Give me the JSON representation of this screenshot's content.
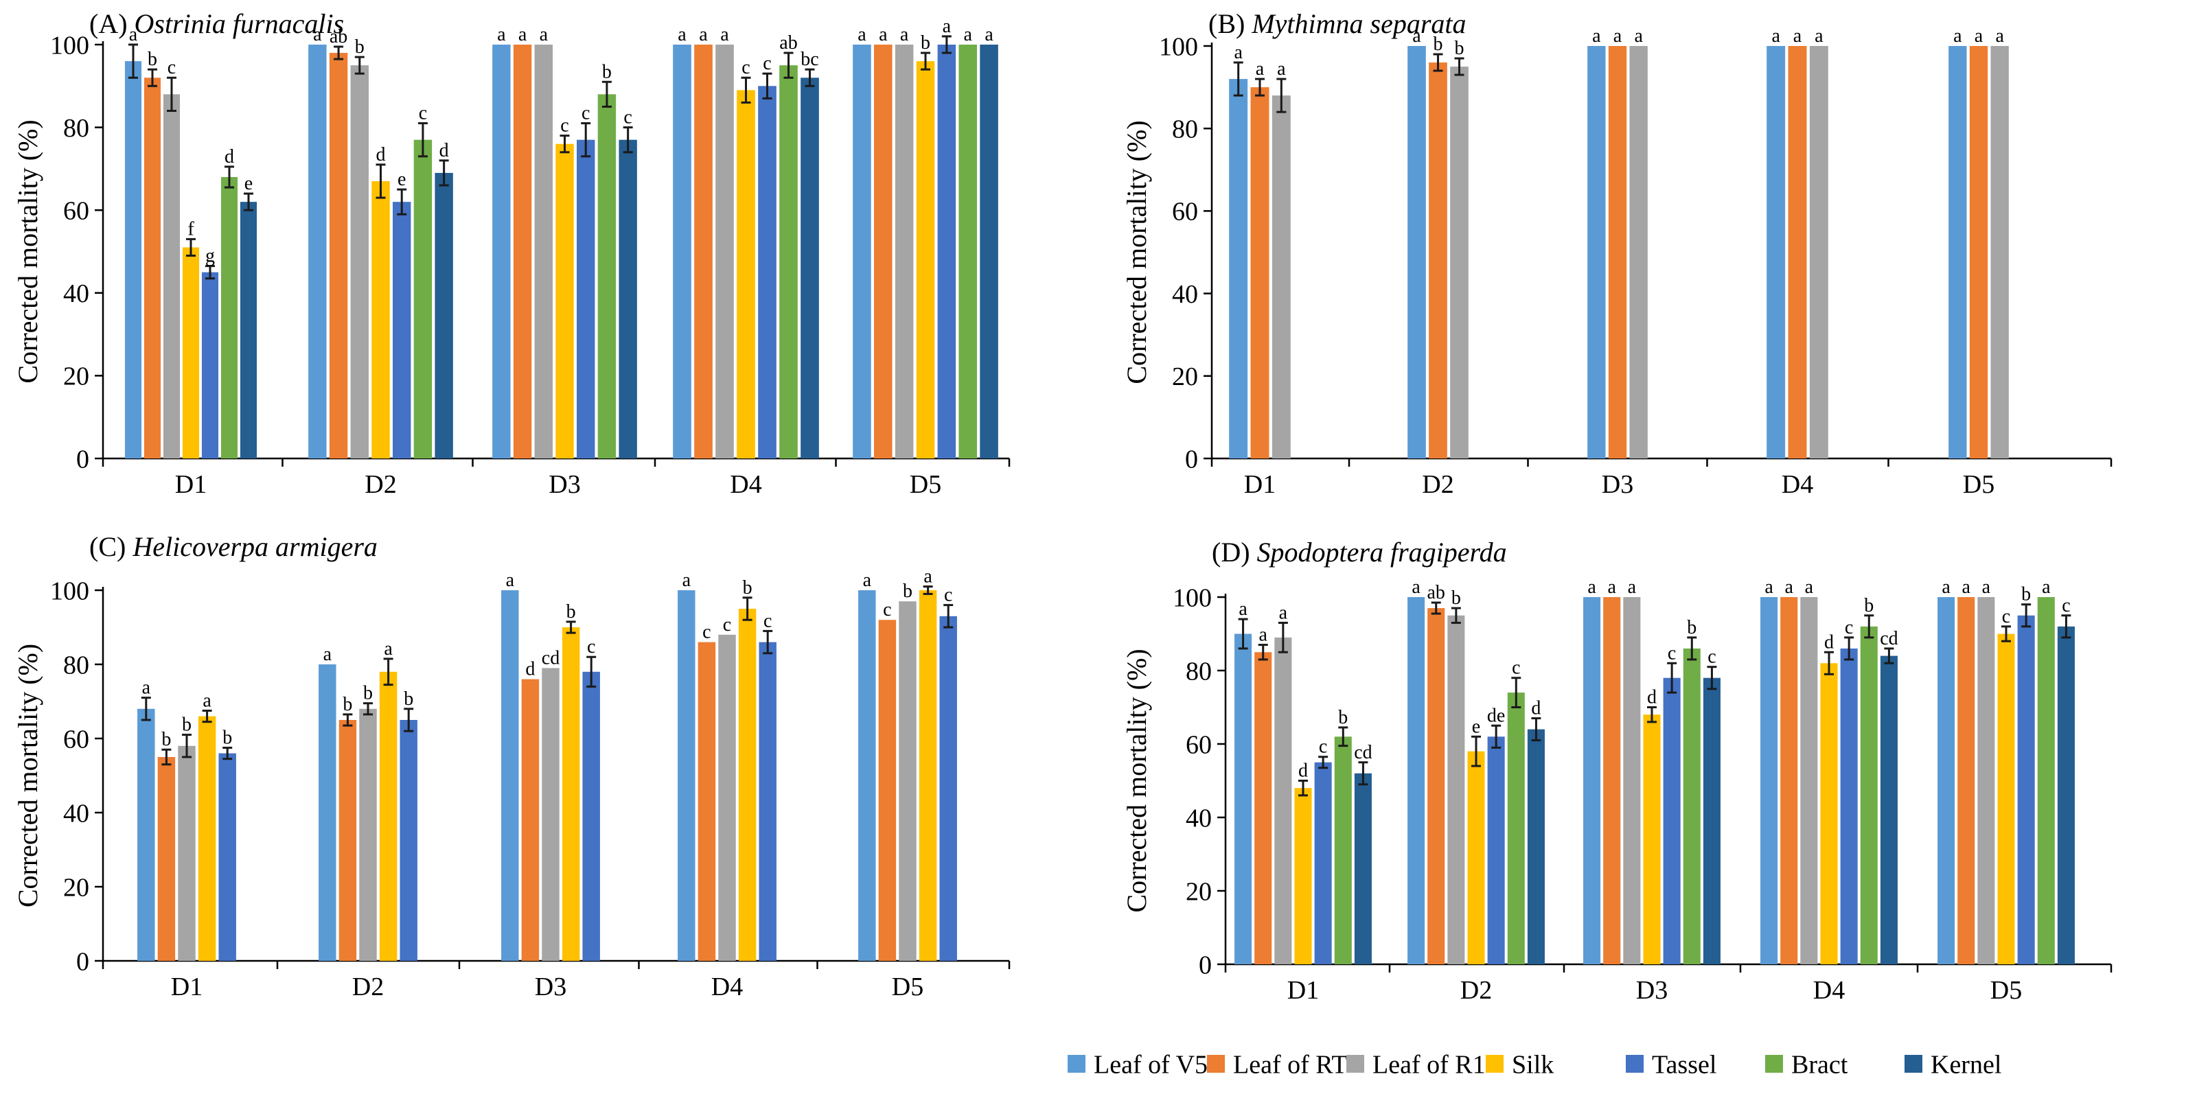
{
  "series": [
    {
      "name": "Leaf of V5",
      "color": "#5B9BD5"
    },
    {
      "name": "Leaf of RT",
      "color": "#ED7D31"
    },
    {
      "name": "Leaf of R1",
      "color": "#A5A5A5"
    },
    {
      "name": "Silk",
      "color": "#FFC000"
    },
    {
      "name": "Tassel",
      "color": "#4472C4"
    },
    {
      "name": "Bract",
      "color": "#70AD47"
    },
    {
      "name": "Kernel",
      "color": "#255E91"
    }
  ],
  "chart_data": [
    {
      "type": "bar",
      "label": "(A)",
      "species": "Ostrinia furnacalis",
      "ylabel": "Corrected mortality (%)",
      "ylim": [
        0,
        100
      ],
      "yticks": [
        0,
        20,
        40,
        60,
        80,
        100
      ],
      "categories": [
        "D1",
        "D2",
        "D3",
        "D4",
        "D5"
      ],
      "series_idx": [
        0,
        1,
        2,
        3,
        4,
        5,
        6
      ],
      "values": [
        [
          96,
          92,
          88,
          51,
          45,
          68,
          62
        ],
        [
          100,
          98,
          95,
          67,
          62,
          77,
          69
        ],
        [
          100,
          100,
          100,
          76,
          77,
          88,
          77
        ],
        [
          100,
          100,
          100,
          89,
          90,
          95,
          92
        ],
        [
          100,
          100,
          100,
          96,
          100,
          100,
          100
        ]
      ],
      "errors": [
        [
          4,
          2,
          4,
          2,
          1.5,
          2.5,
          2
        ],
        [
          0,
          1.5,
          2,
          4,
          3,
          4,
          3
        ],
        [
          0,
          0,
          0,
          2,
          4,
          3,
          3
        ],
        [
          0,
          0,
          0,
          3,
          3,
          3,
          2
        ],
        [
          0,
          0,
          0,
          2,
          2,
          0,
          0
        ]
      ],
      "letters": [
        [
          "a",
          "b",
          "c",
          "f",
          "g",
          "d",
          "e"
        ],
        [
          "a",
          "ab",
          "b",
          "d",
          "e",
          "c",
          "d"
        ],
        [
          "a",
          "a",
          "a",
          "c",
          "c",
          "b",
          "c"
        ],
        [
          "a",
          "a",
          "a",
          "c",
          "c",
          "ab",
          "bc"
        ],
        [
          "a",
          "a",
          "a",
          "b",
          "a",
          "a",
          "a"
        ]
      ]
    },
    {
      "type": "bar",
      "label": "(B)",
      "species": "Mythimna separata",
      "ylabel": "Corrected mortality (%)",
      "ylim": [
        0,
        100
      ],
      "yticks": [
        0,
        20,
        40,
        60,
        80,
        100
      ],
      "categories": [
        "D1",
        "D2",
        "D3",
        "D4",
        "D5"
      ],
      "series_idx": [
        0,
        1,
        2
      ],
      "values": [
        [
          92,
          90,
          88
        ],
        [
          100,
          96,
          95
        ],
        [
          100,
          100,
          100
        ],
        [
          100,
          100,
          100
        ],
        [
          100,
          100,
          100
        ]
      ],
      "errors": [
        [
          4,
          2,
          4
        ],
        [
          0,
          2,
          2
        ],
        [
          0,
          0,
          0
        ],
        [
          0,
          0,
          0
        ],
        [
          0,
          0,
          0
        ]
      ],
      "letters": [
        [
          "a",
          "a",
          "a"
        ],
        [
          "a",
          "b",
          "b"
        ],
        [
          "a",
          "a",
          "a"
        ],
        [
          "a",
          "a",
          "a"
        ],
        [
          "a",
          "a",
          "a"
        ]
      ]
    },
    {
      "type": "bar",
      "label": "(C)",
      "species": "Helicoverpa armigera",
      "ylabel": "Corrected mortality (%)",
      "ylim": [
        0,
        100
      ],
      "yticks": [
        0,
        20,
        40,
        60,
        80,
        100
      ],
      "categories": [
        "D1",
        "D2",
        "D3",
        "D4",
        "D5"
      ],
      "series_idx": [
        0,
        1,
        2,
        3,
        4
      ],
      "values": [
        [
          68,
          55,
          58,
          66,
          56
        ],
        [
          80,
          65,
          68,
          78,
          65
        ],
        [
          100,
          76,
          79,
          90,
          78
        ],
        [
          100,
          86,
          88,
          95,
          86
        ],
        [
          100,
          92,
          97,
          100,
          93
        ]
      ],
      "errors": [
        [
          3,
          2,
          3,
          1.5,
          1.5
        ],
        [
          0,
          1.5,
          1.5,
          3.5,
          3
        ],
        [
          0,
          0,
          0,
          1.5,
          4
        ],
        [
          0,
          0,
          0,
          3,
          3
        ],
        [
          0,
          0,
          0,
          1,
          3
        ]
      ],
      "letters": [
        [
          "a",
          "b",
          "b",
          "a",
          "b"
        ],
        [
          "a",
          "b",
          "b",
          "a",
          "b"
        ],
        [
          "a",
          "d",
          "cd",
          "b",
          "c"
        ],
        [
          "a",
          "c",
          "c",
          "b",
          "c"
        ],
        [
          "a",
          "c",
          "b",
          "a",
          "c"
        ]
      ]
    },
    {
      "type": "bar",
      "label": "(D)",
      "species": "Spodoptera fragiperda",
      "ylabel": "Corrected mortality (%)",
      "ylim": [
        0,
        100
      ],
      "yticks": [
        0,
        20,
        40,
        60,
        80,
        100
      ],
      "categories": [
        "D1",
        "D2",
        "D3",
        "D4",
        "D5"
      ],
      "series_idx": [
        0,
        1,
        2,
        3,
        4,
        5,
        6
      ],
      "values": [
        [
          90,
          85,
          89,
          48,
          55,
          62,
          52
        ],
        [
          100,
          97,
          95,
          58,
          62,
          74,
          64
        ],
        [
          100,
          100,
          100,
          68,
          78,
          86,
          78
        ],
        [
          100,
          100,
          100,
          82,
          86,
          92,
          84
        ],
        [
          100,
          100,
          100,
          90,
          95,
          100,
          92
        ]
      ],
      "errors": [
        [
          4,
          2,
          4,
          2,
          1.5,
          2.5,
          3
        ],
        [
          0,
          1.5,
          2,
          4,
          3,
          4,
          3
        ],
        [
          0,
          0,
          0,
          2,
          4,
          3,
          3
        ],
        [
          0,
          0,
          0,
          3,
          3,
          3,
          2
        ],
        [
          0,
          0,
          0,
          2,
          3,
          0,
          3
        ]
      ],
      "letters": [
        [
          "a",
          "a",
          "a",
          "d",
          "c",
          "b",
          "cd"
        ],
        [
          "a",
          "ab",
          "b",
          "e",
          "de",
          "c",
          "d"
        ],
        [
          "a",
          "a",
          "a",
          "d",
          "c",
          "b",
          "c"
        ],
        [
          "a",
          "a",
          "a",
          "d",
          "c",
          "b",
          "cd"
        ],
        [
          "a",
          "a",
          "a",
          "c",
          "b",
          "a",
          "c"
        ]
      ]
    }
  ]
}
